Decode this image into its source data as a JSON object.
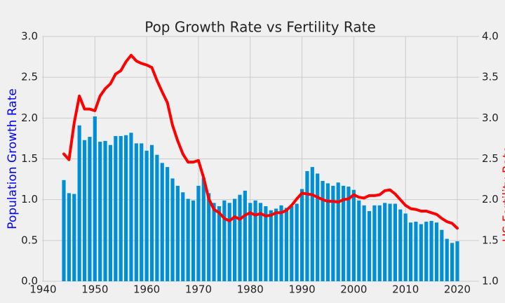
{
  "chart_data": {
    "type": "bar_line",
    "title": "Pop Growth Rate vs Fertility Rate",
    "ylabel": "Population Growth Rate",
    "ylabel_color": "#0000ff",
    "y2label": "US Fertility Rate",
    "y2label_color": "#ff0000",
    "grid": true,
    "x": [
      1944,
      1945,
      1946,
      1947,
      1948,
      1949,
      1950,
      1951,
      1952,
      1953,
      1954,
      1955,
      1956,
      1957,
      1958,
      1959,
      1960,
      1961,
      1962,
      1963,
      1964,
      1965,
      1966,
      1967,
      1968,
      1969,
      1970,
      1971,
      1972,
      1973,
      1974,
      1975,
      1976,
      1977,
      1978,
      1979,
      1980,
      1981,
      1982,
      1983,
      1984,
      1985,
      1986,
      1987,
      1988,
      1989,
      1990,
      1991,
      1992,
      1993,
      1994,
      1995,
      1996,
      1997,
      1998,
      1999,
      2000,
      2001,
      2002,
      2003,
      2004,
      2005,
      2006,
      2007,
      2008,
      2009,
      2010,
      2011,
      2012,
      2013,
      2014,
      2015,
      2016,
      2017,
      2018,
      2019,
      2020
    ],
    "xlim": [
      1939.8,
      2024.2
    ],
    "xticks": [
      1940,
      1950,
      1960,
      1970,
      1980,
      1990,
      2000,
      2010,
      2020
    ],
    "ylim": [
      0,
      3
    ],
    "yticks": [
      {
        "value": 0,
        "label": "0.0"
      },
      0.5,
      {
        "value": 1,
        "label": "1.0"
      },
      1.5,
      {
        "value": 2,
        "label": "2.0"
      },
      2.5,
      {
        "value": 3,
        "label": "3.0"
      }
    ],
    "y2lim": [
      1,
      4
    ],
    "y2ticks": [
      {
        "value": 1,
        "label": "1.0"
      },
      1.5,
      {
        "value": 2,
        "label": "2.0"
      },
      2.5,
      {
        "value": 3,
        "label": "3.0"
      },
      3.5,
      {
        "value": 4,
        "label": "4.0"
      }
    ],
    "series": [
      {
        "type": "bar",
        "color": "#008fd5",
        "values": [
          1.24,
          1.08,
          1.07,
          1.91,
          1.73,
          1.77,
          2.02,
          1.71,
          1.72,
          1.67,
          1.78,
          1.78,
          1.79,
          1.82,
          1.69,
          1.69,
          1.6,
          1.67,
          1.55,
          1.45,
          1.4,
          1.26,
          1.17,
          1.09,
          1.01,
          0.99,
          1.17,
          1.27,
          1.08,
          0.96,
          0.92,
          0.99,
          0.96,
          1.01,
          1.06,
          1.11,
          0.96,
          0.99,
          0.96,
          0.92,
          0.87,
          0.89,
          0.93,
          0.9,
          0.92,
          0.95,
          1.13,
          1.35,
          1.4,
          1.32,
          1.23,
          1.2,
          1.17,
          1.21,
          1.17,
          1.16,
          1.12,
          0.99,
          0.93,
          0.86,
          0.93,
          0.93,
          0.96,
          0.95,
          0.95,
          0.88,
          0.83,
          0.72,
          0.73,
          0.7,
          0.73,
          0.74,
          0.72,
          0.63,
          0.52,
          0.47,
          0.49
        ]
      },
      {
        "type": "line",
        "axis": "y2",
        "color": "#ff0000",
        "values": [
          2.56,
          2.49,
          2.94,
          3.27,
          3.11,
          3.11,
          3.09,
          3.27,
          3.36,
          3.42,
          3.54,
          3.58,
          3.69,
          3.77,
          3.7,
          3.67,
          3.65,
          3.62,
          3.46,
          3.32,
          3.19,
          2.91,
          2.72,
          2.56,
          2.46,
          2.46,
          2.48,
          2.27,
          2.01,
          1.88,
          1.84,
          1.77,
          1.74,
          1.79,
          1.76,
          1.81,
          1.84,
          1.81,
          1.83,
          1.8,
          1.81,
          1.84,
          1.84,
          1.87,
          1.93,
          2.01,
          2.08,
          2.07,
          2.06,
          2.03,
          2.0,
          1.98,
          1.98,
          1.97,
          2.0,
          2.01,
          2.06,
          2.03,
          2.02,
          2.05,
          2.05,
          2.06,
          2.11,
          2.12,
          2.07,
          2.0,
          1.93,
          1.89,
          1.88,
          1.86,
          1.86,
          1.84,
          1.82,
          1.77,
          1.73,
          1.71,
          1.65
        ]
      }
    ]
  }
}
